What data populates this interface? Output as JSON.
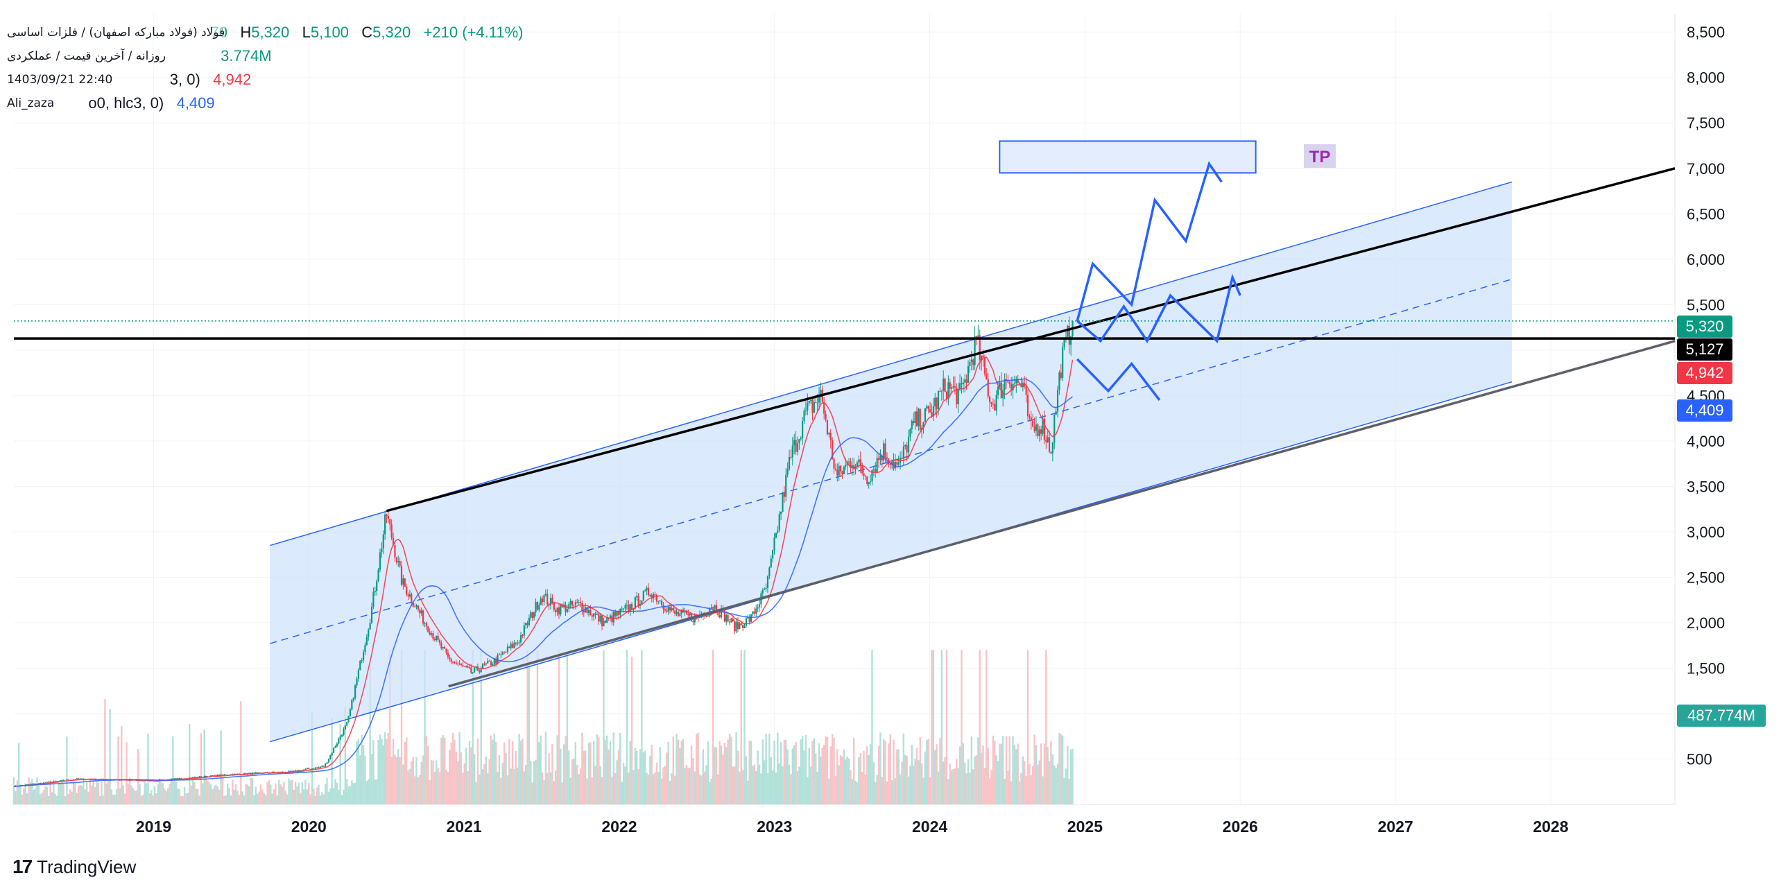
{
  "header": {
    "symbol_line": "فولاد (فولاد مبارکه اصفهان) / فلزات اساسی",
    "open_fragment": "70",
    "high_label": "H",
    "high_value": "5,320",
    "low_label": "L",
    "low_value": "5,100",
    "close_label": "C",
    "close_value": "5,320",
    "change": "+210 (+4.11%)",
    "interval_line": "روزانه / آخرین قیمت / عملکردی",
    "volume_fragment": "3.774M",
    "timestamp": "1403/09/21 22:40",
    "ma1_fragment": "3, 0)",
    "ma1_value": "4,942",
    "author": "Ali_zaza",
    "ma2_fragment": "o0, hlc3, 0)",
    "ma2_value": "4,409"
  },
  "annotations": {
    "tp_label": "TP"
  },
  "footer": {
    "brand": "TradingView",
    "logo_glyph": "17"
  },
  "price_labels": {
    "close": "5,320",
    "level": "5,127",
    "ma1": "4,942",
    "ma2": "4,409",
    "volume": "487.774M"
  },
  "colors": {
    "up": "#089981",
    "down": "#f23645",
    "ma_fast": "#f23645",
    "ma_slow": "#2962ff",
    "channel_fill": "#cfe3fb",
    "channel_line": "#2962ff",
    "trend_line": "#000000",
    "level_line": "#000000",
    "projection": "#2962ff",
    "tp_box_fill": "#e3edfd",
    "tp_label_bg": "#d9d3f0",
    "tp_label_text": "#9c27b0"
  },
  "chart_data": {
    "type": "candlestick",
    "y_axis": {
      "ticks": [
        500,
        1000,
        1500,
        2000,
        2500,
        3000,
        3500,
        4000,
        4500,
        5000,
        5500,
        6000,
        6500,
        7000,
        7500,
        8000,
        8500
      ],
      "tick_labels": [
        "500",
        "1,000",
        "1,500",
        "2,000",
        "2,500",
        "3,000",
        "3,500",
        "4,000",
        "4,500",
        "5,000",
        "5,500",
        "6,000",
        "6,500",
        "7,000",
        "7,500",
        "8,000",
        "8,500"
      ],
      "range": [
        0,
        8700
      ],
      "position": "right"
    },
    "x_axis": {
      "ticks": [
        2019,
        2020,
        2021,
        2022,
        2023,
        2024,
        2025,
        2026,
        2027,
        2028
      ],
      "tick_labels": [
        "2019",
        "2020",
        "2021",
        "2022",
        "2023",
        "2024",
        "2025",
        "2026",
        "2027",
        "2028"
      ],
      "range": [
        2018.1,
        2028.8
      ]
    },
    "price_series": {
      "x": [
        2018.1,
        2018.5,
        2019.0,
        2019.5,
        2019.9,
        2020.1,
        2020.25,
        2020.4,
        2020.5,
        2020.6,
        2020.75,
        2020.9,
        2021.05,
        2021.2,
        2021.35,
        2021.5,
        2021.6,
        2021.75,
        2021.9,
        2022.05,
        2022.2,
        2022.35,
        2022.5,
        2022.6,
        2022.75,
        2022.85,
        2022.95,
        2023.1,
        2023.2,
        2023.3,
        2023.4,
        2023.5,
        2023.6,
        2023.7,
        2023.8,
        2023.9,
        2024.0,
        2024.1,
        2024.2,
        2024.3,
        2024.4,
        2024.5,
        2024.6,
        2024.65,
        2024.72,
        2024.78,
        2024.85,
        2024.92
      ],
      "close": [
        200,
        280,
        260,
        330,
        360,
        420,
        900,
        2100,
        3200,
        2450,
        2000,
        1600,
        1450,
        1580,
        1800,
        2300,
        2150,
        2200,
        2000,
        2150,
        2350,
        2100,
        2050,
        2200,
        1950,
        2050,
        2400,
        3800,
        4300,
        4500,
        3600,
        3800,
        3600,
        3900,
        3700,
        4200,
        4300,
        4600,
        4500,
        5100,
        4400,
        4700,
        4600,
        4100,
        4200,
        3900,
        4900,
        5320
      ]
    },
    "ma_fast": {
      "name": "",
      "last_value": 4942
    },
    "ma_slow": {
      "name": "",
      "last_value": 4409
    },
    "channel": {
      "start_x": 2019.75,
      "end_x": 2027.75,
      "upper": [
        2850,
        6850
      ],
      "middle": [
        1770,
        5780
      ],
      "lower": [
        690,
        4650
      ]
    },
    "trend_lines": [
      {
        "from": [
          2020.5,
          3230
        ],
        "to": [
          2028.8,
          7000
        ]
      },
      {
        "from": [
          2020.9,
          1300
        ],
        "to": [
          2028.8,
          5100
        ]
      }
    ],
    "horizontal_level": 5127,
    "close_level": 5320,
    "projections": [
      [
        [
          2024.95,
          5320
        ],
        [
          2025.05,
          5950
        ],
        [
          2025.3,
          5500
        ],
        [
          2025.45,
          6650
        ],
        [
          2025.65,
          6200
        ],
        [
          2025.8,
          7050
        ],
        [
          2025.88,
          6850
        ]
      ],
      [
        [
          2024.95,
          5320
        ],
        [
          2025.1,
          5100
        ],
        [
          2025.25,
          5480
        ],
        [
          2025.4,
          5100
        ],
        [
          2025.55,
          5600
        ],
        [
          2025.85,
          5100
        ],
        [
          2025.95,
          5800
        ],
        [
          2026.0,
          5600
        ]
      ],
      [
        [
          2024.95,
          4900
        ],
        [
          2025.15,
          4550
        ],
        [
          2025.3,
          4850
        ],
        [
          2025.48,
          4450
        ]
      ]
    ],
    "tp_box": {
      "x": [
        2024.45,
        2026.1
      ],
      "y": [
        6950,
        7300
      ]
    },
    "volume": {
      "last_value": "487.774M",
      "scale_max_price_units": 1700
    },
    "legend": "top-left",
    "grid": true
  }
}
